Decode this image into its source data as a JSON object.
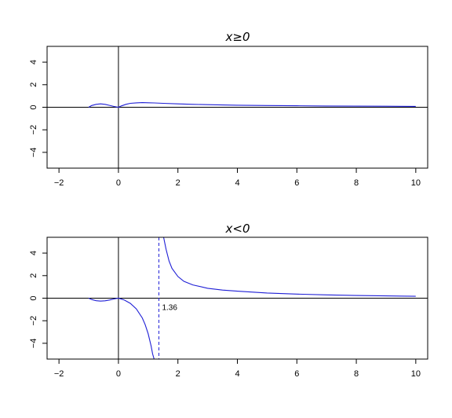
{
  "chart_data": [
    {
      "type": "line",
      "title": "x≥0",
      "xlabel": "",
      "ylabel": "",
      "xlim": [
        -2.4,
        10.4
      ],
      "ylim": [
        -5.4,
        5.4
      ],
      "x_ticks": [
        -2,
        0,
        2,
        4,
        6,
        8,
        10
      ],
      "y_ticks": [
        -4,
        -2,
        0,
        2,
        4
      ],
      "x_tick_labels": [
        "−2",
        "0",
        "2",
        "4",
        "6",
        "8",
        "10"
      ],
      "y_tick_labels": [
        "−4",
        "−2",
        "0",
        "2",
        "4"
      ],
      "reference_lines": {
        "x": 0,
        "y": 0
      },
      "color": "#1f1fd6",
      "series": [
        {
          "x": [
            -1.0,
            -0.9,
            -0.75,
            -0.6,
            -0.45,
            -0.3,
            -0.15,
            0.0,
            0.1,
            0.25,
            0.4,
            0.6,
            0.8,
            1.0,
            1.2,
            1.5,
            2.0,
            2.5,
            3.0,
            4.0,
            5.0,
            6.0,
            7.0,
            8.0,
            9.0,
            10.0
          ],
          "y": [
            0.0,
            0.15,
            0.26,
            0.3,
            0.26,
            0.17,
            0.07,
            0.0,
            0.12,
            0.26,
            0.35,
            0.39,
            0.41,
            0.4,
            0.38,
            0.35,
            0.3,
            0.26,
            0.23,
            0.18,
            0.15,
            0.13,
            0.11,
            0.1,
            0.09,
            0.08
          ]
        }
      ]
    },
    {
      "type": "line",
      "title": "x<0",
      "xlabel": "",
      "ylabel": "",
      "xlim": [
        -2.4,
        10.4
      ],
      "ylim": [
        -5.4,
        5.4
      ],
      "x_ticks": [
        -2,
        0,
        2,
        4,
        6,
        8,
        10
      ],
      "y_ticks": [
        -4,
        -2,
        0,
        2,
        4
      ],
      "x_tick_labels": [
        "−2",
        "0",
        "2",
        "4",
        "6",
        "8",
        "10"
      ],
      "y_tick_labels": [
        "−4",
        "−2",
        "0",
        "2",
        "4"
      ],
      "reference_lines": {
        "x": 0,
        "y": 0
      },
      "color": "#1f1fd6",
      "vertical_asymptote": {
        "x": 1.36,
        "label": "1.36",
        "style": "dashed"
      },
      "series": [
        {
          "x": [
            -1.0,
            -0.9,
            -0.75,
            -0.6,
            -0.45,
            -0.3,
            -0.15,
            0.0,
            0.2,
            0.4,
            0.6,
            0.8,
            0.9,
            1.0,
            1.1,
            1.15,
            1.2
          ],
          "y": [
            0.0,
            -0.12,
            -0.22,
            -0.26,
            -0.23,
            -0.16,
            -0.07,
            0.0,
            -0.17,
            -0.46,
            -0.95,
            -1.75,
            -2.35,
            -3.15,
            -4.25,
            -4.95,
            -5.4
          ]
        },
        {
          "x": [
            1.52,
            1.6,
            1.7,
            1.8,
            2.0,
            2.2,
            2.5,
            3.0,
            3.5,
            4.0,
            5.0,
            6.0,
            7.0,
            8.0,
            9.0,
            10.0
          ],
          "y": [
            5.4,
            4.35,
            3.3,
            2.65,
            1.92,
            1.5,
            1.18,
            0.88,
            0.72,
            0.62,
            0.46,
            0.36,
            0.29,
            0.24,
            0.2,
            0.17
          ]
        }
      ]
    }
  ]
}
